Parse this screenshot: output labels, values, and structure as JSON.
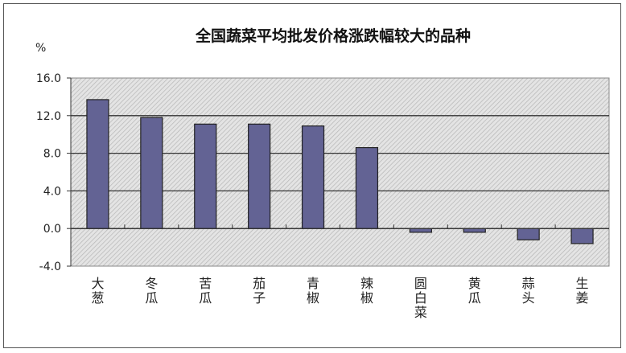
{
  "chart_data": {
    "type": "bar",
    "title": "全国蔬菜平均批发价格涨跌幅较大的品种",
    "ylabel": "%",
    "xlabel": "",
    "categories": [
      "大葱",
      "冬瓜",
      "苦瓜",
      "茄子",
      "青椒",
      "辣椒",
      "圆白菜",
      "黄瓜",
      "蒜头",
      "生姜"
    ],
    "values": [
      13.7,
      11.8,
      11.1,
      11.1,
      10.9,
      8.6,
      -0.4,
      -0.4,
      -1.2,
      -1.6
    ],
    "ylim": [
      -4,
      16
    ],
    "yticks": [
      "16.0",
      "12.0",
      "8.0",
      "4.0",
      "0.0",
      "-4.0"
    ],
    "grid": true,
    "bar_color": "#636394",
    "plot_background": "hatched light gray"
  }
}
